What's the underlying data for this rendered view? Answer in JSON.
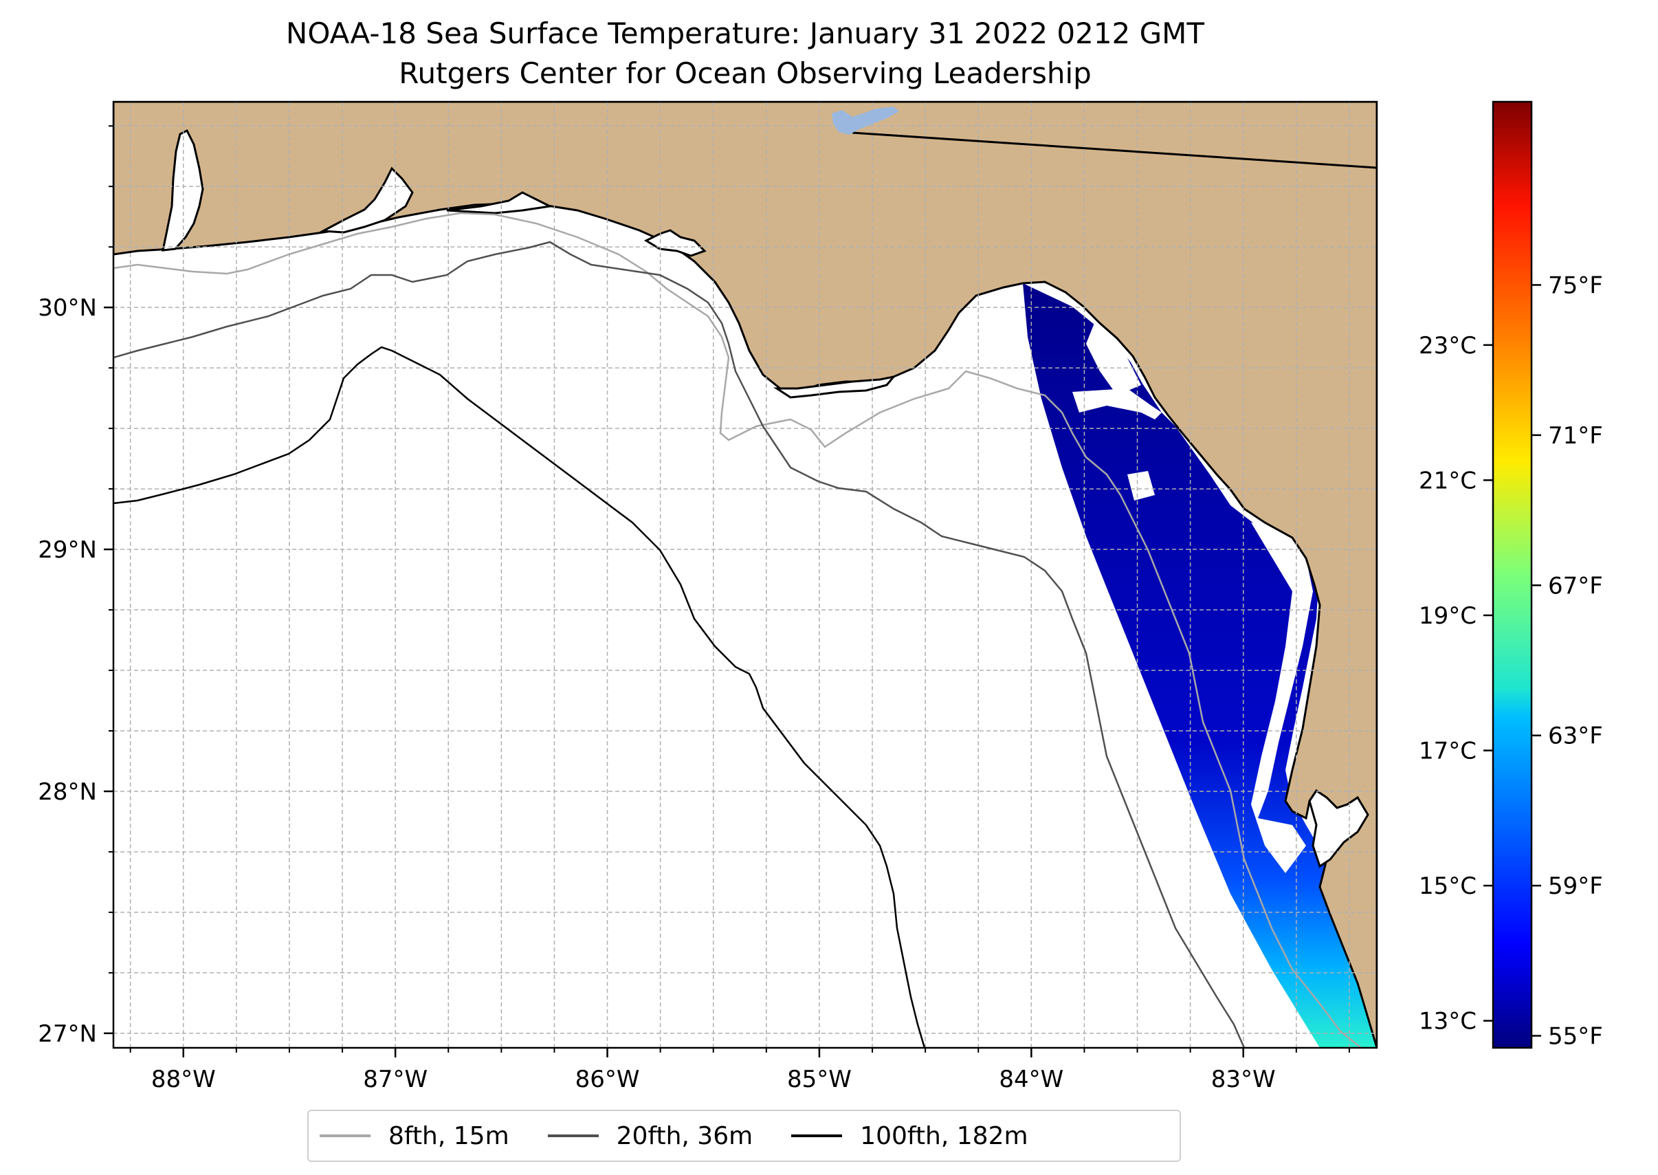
{
  "title_line1": "NOAA-18 Sea Surface Temperature: January 31 2022 0212 GMT",
  "title_line2": "Rutgers Center for Ocean Observing Leadership",
  "colors": {
    "land": "#d2b48c",
    "ocean": "#ffffff",
    "lake": "#9ab8df",
    "coastline": "#000000",
    "grid": "#b0b0b0",
    "isobath_15m": "#a8a8a8",
    "isobath_36m": "#505050",
    "isobath_182m": "#000000"
  },
  "map": {
    "lon_range": [
      -88.33,
      -82.37
    ],
    "lat_range": [
      26.94,
      30.85
    ],
    "lon_ticks": [
      {
        "value": -88,
        "label": "88°W"
      },
      {
        "value": -87,
        "label": "87°W"
      },
      {
        "value": -86,
        "label": "86°W"
      },
      {
        "value": -85,
        "label": "85°W"
      },
      {
        "value": -84,
        "label": "84°W"
      },
      {
        "value": -83,
        "label": "83°W"
      }
    ],
    "lat_ticks": [
      {
        "value": 27,
        "label": "27°N"
      },
      {
        "value": 28,
        "label": "28°N"
      },
      {
        "value": 29,
        "label": "29°N"
      },
      {
        "value": 30,
        "label": "30°N"
      }
    ],
    "grid_step_deg": 0.25
  },
  "legend": [
    {
      "label": "8fth, 15m",
      "color": "#a8a8a8"
    },
    {
      "label": "20fth, 36m",
      "color": "#505050"
    },
    {
      "label": "100fth, 182m",
      "color": "#000000"
    }
  ],
  "colorbar": {
    "celsius_range": [
      12.6,
      26.6
    ],
    "celsius_ticks": [
      {
        "value": 13,
        "label": "13°C"
      },
      {
        "value": 15,
        "label": "15°C"
      },
      {
        "value": 17,
        "label": "17°C"
      },
      {
        "value": 19,
        "label": "19°C"
      },
      {
        "value": 21,
        "label": "21°C"
      },
      {
        "value": 23,
        "label": "23°C"
      }
    ],
    "fahrenheit_ticks": [
      {
        "value": 55,
        "label": "55°F"
      },
      {
        "value": 59,
        "label": "59°F"
      },
      {
        "value": 63,
        "label": "63°F"
      },
      {
        "value": 67,
        "label": "67°F"
      },
      {
        "value": 71,
        "label": "71°F"
      },
      {
        "value": 75,
        "label": "75°F"
      }
    ]
  }
}
